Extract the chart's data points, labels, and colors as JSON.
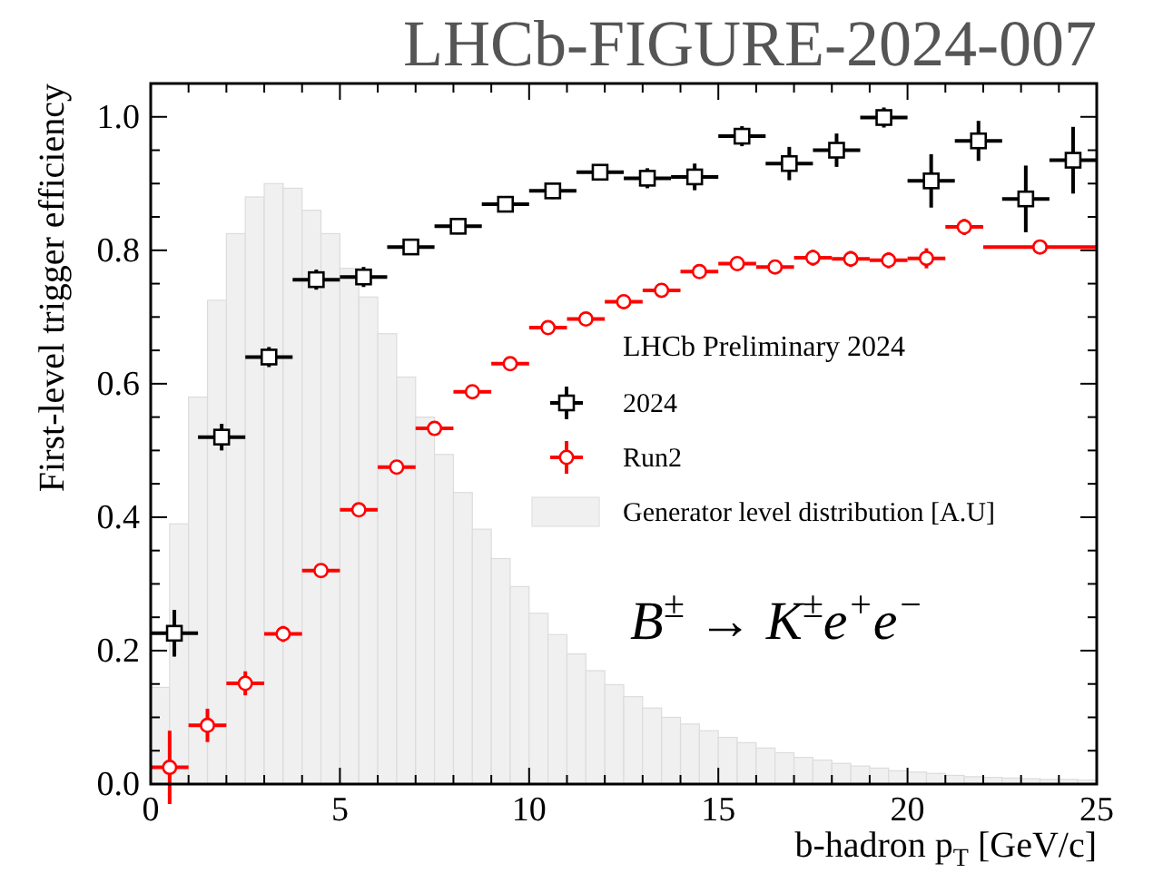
{
  "chart_data": {
    "type": "scatter",
    "title": "LHCb-FIGURE-2024-007",
    "xlabel": "b-hadron p$_{T}$ [GeV/c]",
    "ylabel": "First-level trigger efficiency",
    "legend_title": "LHCb Preliminary 2024",
    "legend": "right",
    "annotations": [
      "B$^{±}$ → K$^{±}$e$^{+}$e$^{−}$"
    ],
    "xlim": [
      0,
      25
    ],
    "ylim": [
      0,
      1.05
    ],
    "xticks": [
      0,
      {
        "value": 1,
        "label": null
      },
      {
        "value": 2,
        "label": null
      },
      {
        "value": 3,
        "label": null
      },
      {
        "value": 4,
        "label": null
      },
      5,
      {
        "value": 6,
        "label": null
      },
      {
        "value": 7,
        "label": null
      },
      {
        "value": 8,
        "label": null
      },
      {
        "value": 9,
        "label": null
      },
      10,
      {
        "value": 11,
        "label": null
      },
      {
        "value": 12,
        "label": null
      },
      {
        "value": 13,
        "label": null
      },
      {
        "value": 14,
        "label": null
      },
      15,
      {
        "value": 16,
        "label": null
      },
      {
        "value": 17,
        "label": null
      },
      {
        "value": 18,
        "label": null
      },
      {
        "value": 19,
        "label": null
      },
      20,
      {
        "value": 21,
        "label": null
      },
      {
        "value": 22,
        "label": null
      },
      {
        "value": 23,
        "label": null
      },
      {
        "value": 24,
        "label": null
      },
      25
    ],
    "yticks": [
      {
        "value": 0,
        "label": "0.0"
      },
      {
        "value": 0.05,
        "label": null
      },
      {
        "value": 0.1,
        "label": null
      },
      {
        "value": 0.15,
        "label": null
      },
      {
        "value": 0.2,
        "label": "0.2"
      },
      {
        "value": 0.25,
        "label": null
      },
      {
        "value": 0.3,
        "label": null
      },
      {
        "value": 0.35,
        "label": null
      },
      {
        "value": 0.4,
        "label": "0.4"
      },
      {
        "value": 0.45,
        "label": null
      },
      {
        "value": 0.5,
        "label": null
      },
      {
        "value": 0.55,
        "label": null
      },
      {
        "value": 0.6,
        "label": "0.6"
      },
      {
        "value": 0.65,
        "label": null
      },
      {
        "value": 0.7,
        "label": null
      },
      {
        "value": 0.75,
        "label": null
      },
      {
        "value": 0.8,
        "label": "0.8"
      },
      {
        "value": 0.85,
        "label": null
      },
      {
        "value": 0.9,
        "label": null
      },
      {
        "value": 0.95,
        "label": null
      },
      {
        "value": 1,
        "label": "1.0"
      },
      {
        "value": 1.05,
        "label": null
      }
    ],
    "series": [
      {
        "name": "Generator level distribution [A.U]",
        "type": "histogram",
        "color": "#f0f0f0",
        "bins": [
          0,
          0.5,
          1,
          1.5,
          2,
          2.5,
          3,
          3.5,
          4,
          4.5,
          5,
          5.5,
          6,
          6.5,
          7,
          7.5,
          8,
          8.5,
          9,
          9.5,
          10,
          10.5,
          11,
          11.5,
          12,
          12.5,
          13,
          13.5,
          14,
          14.5,
          15,
          15.5,
          16,
          16.5,
          17,
          17.5,
          18,
          18.5,
          19,
          19.5,
          20,
          20.5,
          21,
          21.5,
          22,
          22.5,
          23,
          23.5,
          24,
          24.5,
          25
        ],
        "values": [
          0.145,
          0.39,
          0.58,
          0.725,
          0.825,
          0.88,
          0.9,
          0.893,
          0.86,
          0.825,
          0.773,
          0.73,
          0.675,
          0.61,
          0.55,
          0.494,
          0.437,
          0.382,
          0.338,
          0.296,
          0.256,
          0.224,
          0.195,
          0.17,
          0.149,
          0.131,
          0.114,
          0.1,
          0.09,
          0.08,
          0.07,
          0.062,
          0.054,
          0.047,
          0.04,
          0.036,
          0.031,
          0.027,
          0.024,
          0.02,
          0.018,
          0.016,
          0.013,
          0.011,
          0.01,
          0.009,
          0.008,
          0.007,
          0.007,
          0.006
        ]
      },
      {
        "name": "2024",
        "type": "scatter",
        "color": "#000000",
        "marker": "square",
        "x": [
          0.625,
          1.875,
          3.125,
          4.375,
          5.625,
          6.875,
          8.125,
          9.375,
          10.625,
          11.875,
          13.125,
          14.375,
          15.625,
          16.875,
          18.125,
          19.375,
          20.625,
          21.875,
          23.125,
          24.375
        ],
        "values": [
          0.226,
          0.52,
          0.64,
          0.756,
          0.76,
          0.805,
          0.836,
          0.869,
          0.889,
          0.917,
          0.908,
          0.91,
          0.971,
          0.93,
          0.95,
          0.999,
          0.904,
          0.964,
          0.877,
          0.935
        ],
        "errors": [
          0.035,
          0.02,
          0.015,
          0.015,
          0.015,
          0.012,
          0.012,
          0.012,
          0.012,
          0.012,
          0.015,
          0.02,
          0.015,
          0.025,
          0.025,
          0.015,
          0.04,
          0.03,
          0.05,
          0.05
        ],
        "xerrors": [
          0.625,
          0.625,
          0.625,
          0.625,
          0.625,
          0.625,
          0.625,
          0.625,
          0.625,
          0.625,
          0.625,
          0.625,
          0.625,
          0.625,
          0.625,
          0.625,
          0.625,
          0.625,
          0.625,
          0.625
        ]
      },
      {
        "name": "Run2",
        "type": "scatter",
        "color": "#ff0000",
        "marker": "circle",
        "x": [
          0.5,
          1.5,
          2.5,
          3.5,
          4.5,
          5.5,
          6.5,
          7.5,
          8.5,
          9.5,
          10.5,
          11.5,
          12.5,
          13.5,
          14.5,
          15.5,
          16.5,
          17.5,
          18.5,
          19.5,
          20.5,
          21.5,
          23.5
        ],
        "values": [
          0.025,
          0.088,
          0.151,
          0.225,
          0.32,
          0.411,
          0.475,
          0.533,
          0.588,
          0.63,
          0.684,
          0.697,
          0.723,
          0.74,
          0.768,
          0.78,
          0.775,
          0.789,
          0.787,
          0.785,
          0.788,
          0.835,
          0.805
        ],
        "errors": [
          0.055,
          0.025,
          0.018,
          0.012,
          0.008,
          0.008,
          0.008,
          0.008,
          0.008,
          0.008,
          0.008,
          0.008,
          0.008,
          0.008,
          0.008,
          0.008,
          0.01,
          0.012,
          0.012,
          0.012,
          0.015,
          0.012,
          0.01
        ],
        "xerrors": [
          0.5,
          0.5,
          0.5,
          0.5,
          0.5,
          0.5,
          0.5,
          0.5,
          0.5,
          0.5,
          0.5,
          0.5,
          0.5,
          0.5,
          0.5,
          0.5,
          0.5,
          0.5,
          0.5,
          0.5,
          0.5,
          0.5,
          1.5
        ]
      }
    ]
  }
}
